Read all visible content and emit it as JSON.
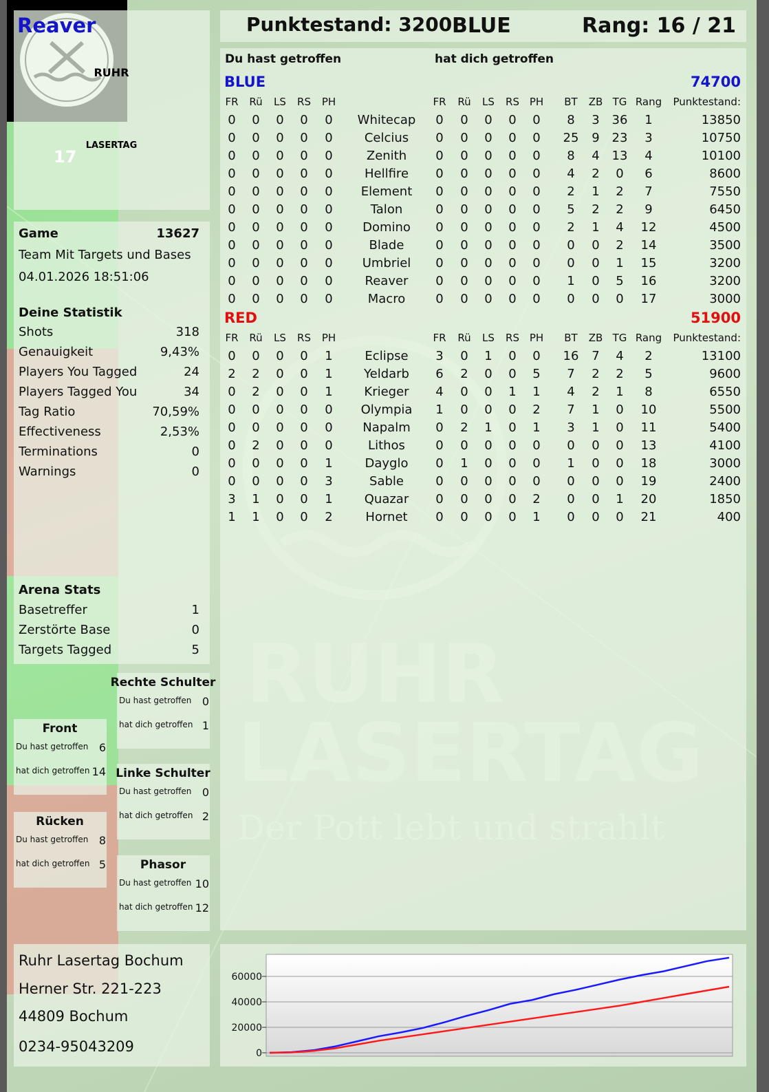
{
  "header": {
    "player": "Reaver",
    "score": "Punktestand: 3200",
    "team": "BLUE",
    "rank": "Rang: 16 / 21"
  },
  "logo": {
    "top": "RUHR",
    "bottom": "LASERTAG",
    "number": "17"
  },
  "game": {
    "label": "Game",
    "id": "13627",
    "mode": "Team Mit Targets und Bases",
    "date": "04.01.2026 18:51:06"
  },
  "stats": {
    "title": "Deine Statistik",
    "rows": [
      [
        "Shots",
        "318"
      ],
      [
        "Genauigkeit",
        "9,43%"
      ],
      [
        "Players You Tagged",
        "24"
      ],
      [
        "Players Tagged You",
        "34"
      ],
      [
        "Tag Ratio",
        "70,59%"
      ],
      [
        "Effectiveness",
        "2,53%"
      ],
      [
        "Terminations",
        "0"
      ],
      [
        "Warnings",
        "0"
      ]
    ]
  },
  "arena": {
    "title": "Arena Stats",
    "rows": [
      [
        "Basetreffer",
        "1"
      ],
      [
        "Zerstörte Base",
        "0"
      ],
      [
        "Targets Tagged",
        "5"
      ]
    ]
  },
  "zones": [
    {
      "title": "Rechte Schulter",
      "rows": [
        [
          "Du hast getroffen",
          "0"
        ],
        [
          "hat dich getroffen",
          "1"
        ]
      ]
    },
    {
      "title": "Front",
      "rows": [
        [
          "Du hast getroffen",
          "6"
        ],
        [
          "hat dich getroffen",
          "14"
        ]
      ]
    },
    {
      "title": "Linke Schulter",
      "rows": [
        [
          "Du hast getroffen",
          "0"
        ],
        [
          "hat dich getroffen",
          "2"
        ]
      ]
    },
    {
      "title": "Rücken",
      "rows": [
        [
          "Du hast getroffen",
          "8"
        ],
        [
          "hat dich getroffen",
          "5"
        ]
      ]
    },
    {
      "title": "Phasor",
      "rows": [
        [
          "Du hast getroffen",
          "10"
        ],
        [
          "hat dich getroffen",
          "12"
        ]
      ]
    }
  ],
  "address": [
    "Ruhr Lasertag Bochum",
    "Herner Str. 221-223",
    "44809 Bochum",
    "0234-95043209"
  ],
  "table": {
    "hit_label": "Du hast getroffen",
    "got_label": "hat dich getroffen",
    "hit_columns": [
      "FR",
      "Rü",
      "LS",
      "RS",
      "PH"
    ],
    "stat_columns": [
      "BT",
      "ZB",
      "TG",
      "Rang",
      "Punktestand:"
    ],
    "teams": [
      {
        "name": "BLUE",
        "color": "#1414c8",
        "total": "74700",
        "players": [
          {
            "name": "Whitecap",
            "hit": [
              0,
              0,
              0,
              0,
              0
            ],
            "got": [
              0,
              0,
              0,
              0,
              0
            ],
            "stats": [
              8,
              3,
              36,
              1,
              13850
            ]
          },
          {
            "name": "Celcius",
            "hit": [
              0,
              0,
              0,
              0,
              0
            ],
            "got": [
              0,
              0,
              0,
              0,
              0
            ],
            "stats": [
              25,
              9,
              23,
              3,
              10750
            ]
          },
          {
            "name": "Zenith",
            "hit": [
              0,
              0,
              0,
              0,
              0
            ],
            "got": [
              0,
              0,
              0,
              0,
              0
            ],
            "stats": [
              8,
              4,
              13,
              4,
              10100
            ]
          },
          {
            "name": "Hellfire",
            "hit": [
              0,
              0,
              0,
              0,
              0
            ],
            "got": [
              0,
              0,
              0,
              0,
              0
            ],
            "stats": [
              4,
              2,
              0,
              6,
              8600
            ]
          },
          {
            "name": "Element",
            "hit": [
              0,
              0,
              0,
              0,
              0
            ],
            "got": [
              0,
              0,
              0,
              0,
              0
            ],
            "stats": [
              2,
              1,
              2,
              7,
              7550
            ]
          },
          {
            "name": "Talon",
            "hit": [
              0,
              0,
              0,
              0,
              0
            ],
            "got": [
              0,
              0,
              0,
              0,
              0
            ],
            "stats": [
              5,
              2,
              2,
              9,
              6450
            ]
          },
          {
            "name": "Domino",
            "hit": [
              0,
              0,
              0,
              0,
              0
            ],
            "got": [
              0,
              0,
              0,
              0,
              0
            ],
            "stats": [
              2,
              1,
              4,
              12,
              4500
            ]
          },
          {
            "name": "Blade",
            "hit": [
              0,
              0,
              0,
              0,
              0
            ],
            "got": [
              0,
              0,
              0,
              0,
              0
            ],
            "stats": [
              0,
              0,
              2,
              14,
              3500
            ]
          },
          {
            "name": "Umbriel",
            "hit": [
              0,
              0,
              0,
              0,
              0
            ],
            "got": [
              0,
              0,
              0,
              0,
              0
            ],
            "stats": [
              0,
              0,
              1,
              15,
              3200
            ]
          },
          {
            "name": "Reaver",
            "hit": [
              0,
              0,
              0,
              0,
              0
            ],
            "got": [
              0,
              0,
              0,
              0,
              0
            ],
            "stats": [
              1,
              0,
              5,
              16,
              3200
            ]
          },
          {
            "name": "Macro",
            "hit": [
              0,
              0,
              0,
              0,
              0
            ],
            "got": [
              0,
              0,
              0,
              0,
              0
            ],
            "stats": [
              0,
              0,
              0,
              17,
              3000
            ]
          }
        ]
      },
      {
        "name": "RED",
        "color": "#e01010",
        "total": "51900",
        "players": [
          {
            "name": "Eclipse",
            "hit": [
              0,
              0,
              0,
              0,
              1
            ],
            "got": [
              3,
              0,
              1,
              0,
              0
            ],
            "stats": [
              16,
              7,
              4,
              2,
              13100
            ]
          },
          {
            "name": "Yeldarb",
            "hit": [
              2,
              2,
              0,
              0,
              1
            ],
            "got": [
              6,
              2,
              0,
              0,
              5
            ],
            "stats": [
              7,
              2,
              2,
              5,
              9600
            ]
          },
          {
            "name": "Krieger",
            "hit": [
              0,
              2,
              0,
              0,
              1
            ],
            "got": [
              4,
              0,
              0,
              1,
              1
            ],
            "stats": [
              4,
              2,
              1,
              8,
              6550
            ]
          },
          {
            "name": "Olympia",
            "hit": [
              0,
              0,
              0,
              0,
              0
            ],
            "got": [
              1,
              0,
              0,
              0,
              2
            ],
            "stats": [
              7,
              1,
              0,
              10,
              5500
            ]
          },
          {
            "name": "Napalm",
            "hit": [
              0,
              0,
              0,
              0,
              0
            ],
            "got": [
              0,
              2,
              1,
              0,
              1
            ],
            "stats": [
              3,
              1,
              0,
              11,
              5400
            ]
          },
          {
            "name": "Lithos",
            "hit": [
              0,
              2,
              0,
              0,
              0
            ],
            "got": [
              0,
              0,
              0,
              0,
              0
            ],
            "stats": [
              0,
              0,
              0,
              13,
              4100
            ]
          },
          {
            "name": "Dayglo",
            "hit": [
              0,
              0,
              0,
              0,
              1
            ],
            "got": [
              0,
              1,
              0,
              0,
              0
            ],
            "stats": [
              1,
              0,
              0,
              18,
              3000
            ]
          },
          {
            "name": "Sable",
            "hit": [
              0,
              0,
              0,
              0,
              3
            ],
            "got": [
              0,
              0,
              0,
              0,
              0
            ],
            "stats": [
              0,
              0,
              0,
              19,
              2400
            ]
          },
          {
            "name": "Quazar",
            "hit": [
              3,
              1,
              0,
              0,
              1
            ],
            "got": [
              0,
              0,
              0,
              0,
              2
            ],
            "stats": [
              0,
              0,
              1,
              20,
              1850
            ]
          },
          {
            "name": "Hornet",
            "hit": [
              1,
              1,
              0,
              0,
              2
            ],
            "got": [
              0,
              0,
              0,
              0,
              1
            ],
            "stats": [
              0,
              0,
              0,
              21,
              400
            ]
          }
        ]
      }
    ]
  },
  "watermark": {
    "line1": "RUHR",
    "line2": "LASERTAG",
    "slogan": "Der Pott lebt und strahlt"
  },
  "chart_data": {
    "type": "line",
    "categories": [
      null,
      null,
      null,
      null,
      null,
      null,
      null,
      null,
      null,
      null,
      null,
      null,
      null,
      null,
      null,
      null,
      null,
      null,
      null,
      null,
      null,
      null
    ],
    "series": [
      {
        "name": "BLUE",
        "color": "#1a1aff",
        "values": [
          0,
          500,
          2000,
          5000,
          9000,
          13000,
          16000,
          19500,
          24000,
          29000,
          33500,
          38500,
          41500,
          46000,
          49500,
          53500,
          57500,
          61000,
          64000,
          68000,
          72000,
          74700
        ]
      },
      {
        "name": "RED",
        "color": "#ff1a1a",
        "values": [
          0,
          300,
          1500,
          3500,
          6500,
          9500,
          12000,
          14500,
          17000,
          19500,
          22000,
          24500,
          27000,
          29500,
          32000,
          34500,
          37000,
          40000,
          43000,
          46000,
          49000,
          51900
        ]
      }
    ],
    "ylim": [
      -2700,
      77300
    ],
    "yticks": [
      0,
      20000,
      40000,
      60000
    ],
    "grid": true
  }
}
